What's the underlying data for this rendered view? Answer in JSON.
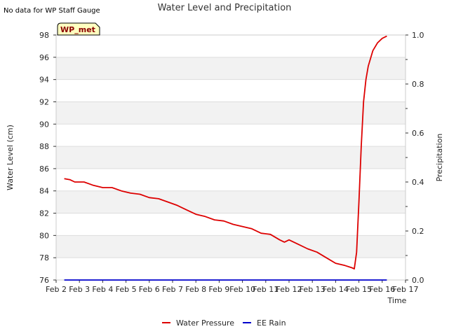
{
  "note": "No data for WP Staff Gauge",
  "badge": "WP_met",
  "chart_data": {
    "type": "line",
    "title": "Water Level and Precipitation",
    "xlabel": "Time",
    "ylabel_left": "Water Level (cm)",
    "ylabel_right": "Precipitation",
    "xlim": [
      2,
      17
    ],
    "x_ticks": [
      2,
      3,
      4,
      5,
      6,
      7,
      8,
      9,
      10,
      11,
      12,
      13,
      14,
      15,
      16,
      17
    ],
    "x_tick_labels": [
      "Feb 2",
      "Feb 3",
      "Feb 4",
      "Feb 5",
      "Feb 6",
      "Feb 7",
      "Feb 8",
      "Feb 9",
      "Feb 10",
      "Feb 11",
      "Feb 12",
      "Feb 13",
      "Feb 14",
      "Feb 15",
      "Feb 16",
      "Feb 17"
    ],
    "ylim_left": [
      76,
      98
    ],
    "y_ticks_left": [
      76,
      78,
      80,
      82,
      84,
      86,
      88,
      90,
      92,
      94,
      96,
      98
    ],
    "ylim_right": [
      0,
      1.0
    ],
    "y_ticks_right": [
      0.0,
      0.2,
      0.4,
      0.6,
      0.8,
      1.0
    ],
    "grid": "horizontal bands",
    "legend_position": "bottom-center",
    "series": [
      {
        "name": "Water Pressure",
        "axis": "left",
        "color": "#dd0000",
        "x": [
          2.35,
          2.6,
          2.8,
          3.2,
          3.6,
          4.0,
          4.4,
          4.8,
          5.2,
          5.6,
          6.0,
          6.4,
          6.8,
          7.2,
          7.6,
          8.0,
          8.4,
          8.8,
          9.2,
          9.6,
          10.0,
          10.4,
          10.8,
          11.2,
          11.6,
          11.8,
          12.0,
          12.4,
          12.8,
          13.2,
          13.6,
          14.0,
          14.4,
          14.7,
          14.8,
          14.9,
          15.0,
          15.1,
          15.2,
          15.3,
          15.4,
          15.6,
          15.8,
          16.0,
          16.2
        ],
        "values": [
          85.1,
          85.0,
          84.8,
          84.8,
          84.5,
          84.3,
          84.3,
          84.0,
          83.8,
          83.7,
          83.4,
          83.3,
          83.0,
          82.7,
          82.3,
          81.9,
          81.7,
          81.4,
          81.3,
          81.0,
          80.8,
          80.6,
          80.2,
          80.1,
          79.6,
          79.4,
          79.6,
          79.2,
          78.8,
          78.5,
          78.0,
          77.5,
          77.3,
          77.1,
          77.0,
          78.5,
          83.0,
          88.0,
          92.0,
          94.0,
          95.2,
          96.6,
          97.3,
          97.7,
          97.9
        ]
      },
      {
        "name": "EE Rain",
        "axis": "right",
        "color": "#0000cc",
        "x": [
          2.35,
          16.2
        ],
        "values": [
          0.0,
          0.0
        ]
      }
    ]
  }
}
